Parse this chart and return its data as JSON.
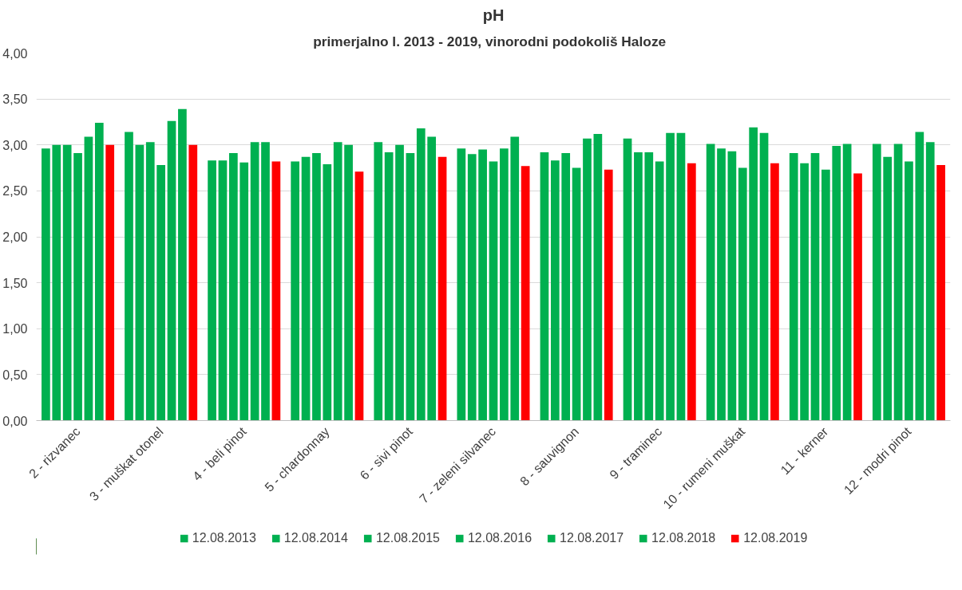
{
  "chart_data": {
    "type": "bar",
    "title": "pH",
    "subtitle": "primerjalno l. 2013 - 2019, vinorodni  podokoliš  Haloze",
    "categories": [
      "2 - rizvanec",
      "3 - muškat otonel",
      "4 - beli pinot",
      "5 - chardonnay",
      "6 - sivi pinot",
      "7 - zeleni silvanec",
      "8 - sauvignon",
      "9 - traminec",
      "10 - rumeni muškat",
      "11 - kerner",
      "12 - modri pinot"
    ],
    "series": [
      {
        "name": "12.08.2013",
        "color": "#00b050",
        "values": [
          2.96,
          3.14,
          2.83,
          2.82,
          3.03,
          2.96,
          2.92,
          3.07,
          3.01,
          2.91,
          3.01
        ]
      },
      {
        "name": "12.08.2014",
        "color": "#00b050",
        "values": [
          3.0,
          3.0,
          2.83,
          2.87,
          2.92,
          2.9,
          2.83,
          2.92,
          2.96,
          2.8,
          2.87
        ]
      },
      {
        "name": "12.08.2015",
        "color": "#00b050",
        "values": [
          3.0,
          3.03,
          2.91,
          2.91,
          3.0,
          2.95,
          2.91,
          2.92,
          2.93,
          2.91,
          3.01
        ]
      },
      {
        "name": "12.08.2016",
        "color": "#00b050",
        "values": [
          2.91,
          2.78,
          2.81,
          2.79,
          2.91,
          2.82,
          2.75,
          2.82,
          2.75,
          2.73,
          2.82
        ]
      },
      {
        "name": "12.08.2017",
        "color": "#00b050",
        "values": [
          3.09,
          3.26,
          3.03,
          3.03,
          3.18,
          2.96,
          3.07,
          3.13,
          3.19,
          2.99,
          3.14
        ]
      },
      {
        "name": "12.08.2018",
        "color": "#00b050",
        "values": [
          3.24,
          3.39,
          3.03,
          3.0,
          3.09,
          3.09,
          3.12,
          3.13,
          3.13,
          3.01,
          3.03
        ]
      },
      {
        "name": "12.08.2019",
        "color": "#ff0000",
        "values": [
          3.0,
          3.0,
          2.82,
          2.71,
          2.87,
          2.77,
          2.73,
          2.8,
          2.8,
          2.69,
          2.78
        ]
      }
    ],
    "ylim": [
      0,
      4
    ],
    "yticks": [
      {
        "value": 0,
        "label": "0,00"
      },
      {
        "value": 0.5,
        "label": "0,50"
      },
      {
        "value": 1,
        "label": "1,00"
      },
      {
        "value": 1.5,
        "label": "1,50"
      },
      {
        "value": 2,
        "label": "2,00"
      },
      {
        "value": 2.5,
        "label": "2,50"
      },
      {
        "value": 3,
        "label": "3,00"
      },
      {
        "value": 3.5,
        "label": "3,50"
      },
      {
        "value": 4,
        "label": "4,00"
      }
    ],
    "grid": "y",
    "legend": "bottom"
  }
}
